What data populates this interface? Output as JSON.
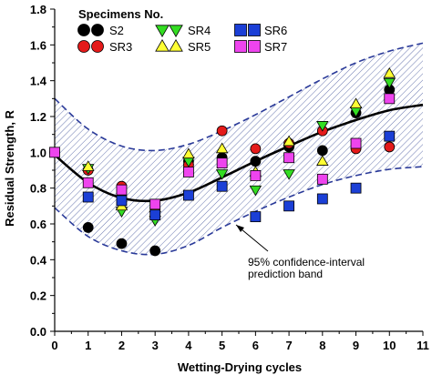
{
  "chart_data": {
    "type": "scatter",
    "xlabel": "Wetting-Drying cycles",
    "ylabel": "Residual Strength, R",
    "xlim": [
      0,
      11
    ],
    "ylim": [
      0.0,
      1.8
    ],
    "xticks": [
      "0",
      "1",
      "2",
      "3",
      "4",
      "5",
      "6",
      "7",
      "8",
      "9",
      "10",
      "11"
    ],
    "yticks": [
      "0.0",
      "0.2",
      "0.4",
      "0.6",
      "0.8",
      "1.0",
      "1.2",
      "1.4",
      "1.6",
      "1.8"
    ],
    "legend_title": "Specimens No.",
    "legend_position": "top-left",
    "series": [
      {
        "name": "S2",
        "marker": "circle",
        "color": "#000000",
        "points": [
          [
            1,
            0.58
          ],
          [
            2,
            0.49
          ],
          [
            3,
            0.45
          ],
          [
            4,
            0.95
          ],
          [
            5,
            0.97
          ],
          [
            6,
            0.95
          ],
          [
            7,
            1.03
          ],
          [
            8,
            1.01
          ],
          [
            9,
            1.22
          ],
          [
            10,
            1.35
          ]
        ]
      },
      {
        "name": "SR3",
        "marker": "circle",
        "color": "#e41a1a",
        "points": [
          [
            0,
            1.0
          ],
          [
            1,
            0.9
          ],
          [
            2,
            0.81
          ],
          [
            3,
            0.69
          ],
          [
            4,
            0.93
          ],
          [
            5,
            1.12
          ],
          [
            6,
            1.02
          ],
          [
            7,
            1.05
          ],
          [
            8,
            1.12
          ],
          [
            9,
            1.02
          ],
          [
            10,
            1.03
          ]
        ]
      },
      {
        "name": "SR4",
        "marker": "triangle-down",
        "color": "#33dd22",
        "points": [
          [
            1,
            0.91
          ],
          [
            2,
            0.67
          ],
          [
            3,
            0.62
          ],
          [
            4,
            0.95
          ],
          [
            5,
            0.88
          ],
          [
            6,
            0.79
          ],
          [
            7,
            0.88
          ],
          [
            8,
            1.15
          ],
          [
            9,
            1.23
          ],
          [
            10,
            1.39
          ]
        ]
      },
      {
        "name": "SR5",
        "marker": "triangle-up",
        "color": "#ffff33",
        "points": [
          [
            1,
            0.92
          ],
          [
            2,
            0.7
          ],
          [
            3,
            0.69
          ],
          [
            4,
            0.99
          ],
          [
            5,
            1.02
          ],
          [
            6,
            0.89
          ],
          [
            7,
            1.06
          ],
          [
            8,
            0.95
          ],
          [
            9,
            1.27
          ],
          [
            10,
            1.44
          ]
        ]
      },
      {
        "name": "SR6",
        "marker": "square",
        "color": "#1b3fd6",
        "points": [
          [
            1,
            0.75
          ],
          [
            2,
            0.73
          ],
          [
            3,
            0.65
          ],
          [
            4,
            0.76
          ],
          [
            5,
            0.81
          ],
          [
            6,
            0.64
          ],
          [
            7,
            0.7
          ],
          [
            8,
            0.74
          ],
          [
            9,
            0.8
          ],
          [
            10,
            1.09
          ]
        ]
      },
      {
        "name": "SR7",
        "marker": "square",
        "color": "#ee44ee",
        "points": [
          [
            0,
            1.0
          ],
          [
            1,
            0.83
          ],
          [
            2,
            0.79
          ],
          [
            3,
            0.71
          ],
          [
            4,
            0.89
          ],
          [
            5,
            0.94
          ],
          [
            6,
            0.87
          ],
          [
            7,
            0.97
          ],
          [
            8,
            0.85
          ],
          [
            9,
            1.05
          ],
          [
            10,
            1.3
          ]
        ]
      }
    ],
    "fit_curve": [
      [
        0,
        0.985
      ],
      [
        1,
        0.83
      ],
      [
        2,
        0.745
      ],
      [
        3,
        0.73
      ],
      [
        4,
        0.775
      ],
      [
        5,
        0.86
      ],
      [
        6,
        0.95
      ],
      [
        7,
        1.035
      ],
      [
        8,
        1.115
      ],
      [
        9,
        1.18
      ],
      [
        10,
        1.235
      ],
      [
        11,
        1.265
      ]
    ],
    "band_upper": [
      [
        0,
        1.3
      ],
      [
        1,
        1.13
      ],
      [
        2,
        1.035
      ],
      [
        3,
        1.01
      ],
      [
        4,
        1.045
      ],
      [
        5,
        1.12
      ],
      [
        6,
        1.21
      ],
      [
        7,
        1.31
      ],
      [
        8,
        1.41
      ],
      [
        9,
        1.5
      ],
      [
        10,
        1.565
      ],
      [
        11,
        1.61
      ]
    ],
    "band_lower": [
      [
        0,
        0.69
      ],
      [
        1,
        0.53
      ],
      [
        2,
        0.45
      ],
      [
        3,
        0.43
      ],
      [
        4,
        0.48
      ],
      [
        5,
        0.58
      ],
      [
        6,
        0.67
      ],
      [
        7,
        0.75
      ],
      [
        8,
        0.82
      ],
      [
        9,
        0.87
      ],
      [
        10,
        0.905
      ],
      [
        11,
        0.92
      ]
    ],
    "annotation": {
      "line1": "95% confidence-interval",
      "line2": "prediction band",
      "x": 6.4,
      "y": 0.4
    },
    "grid": false,
    "colors": {
      "fit": "#000000",
      "band_edge": "#2a3a99",
      "band_hatch": "#6a78b0"
    }
  }
}
